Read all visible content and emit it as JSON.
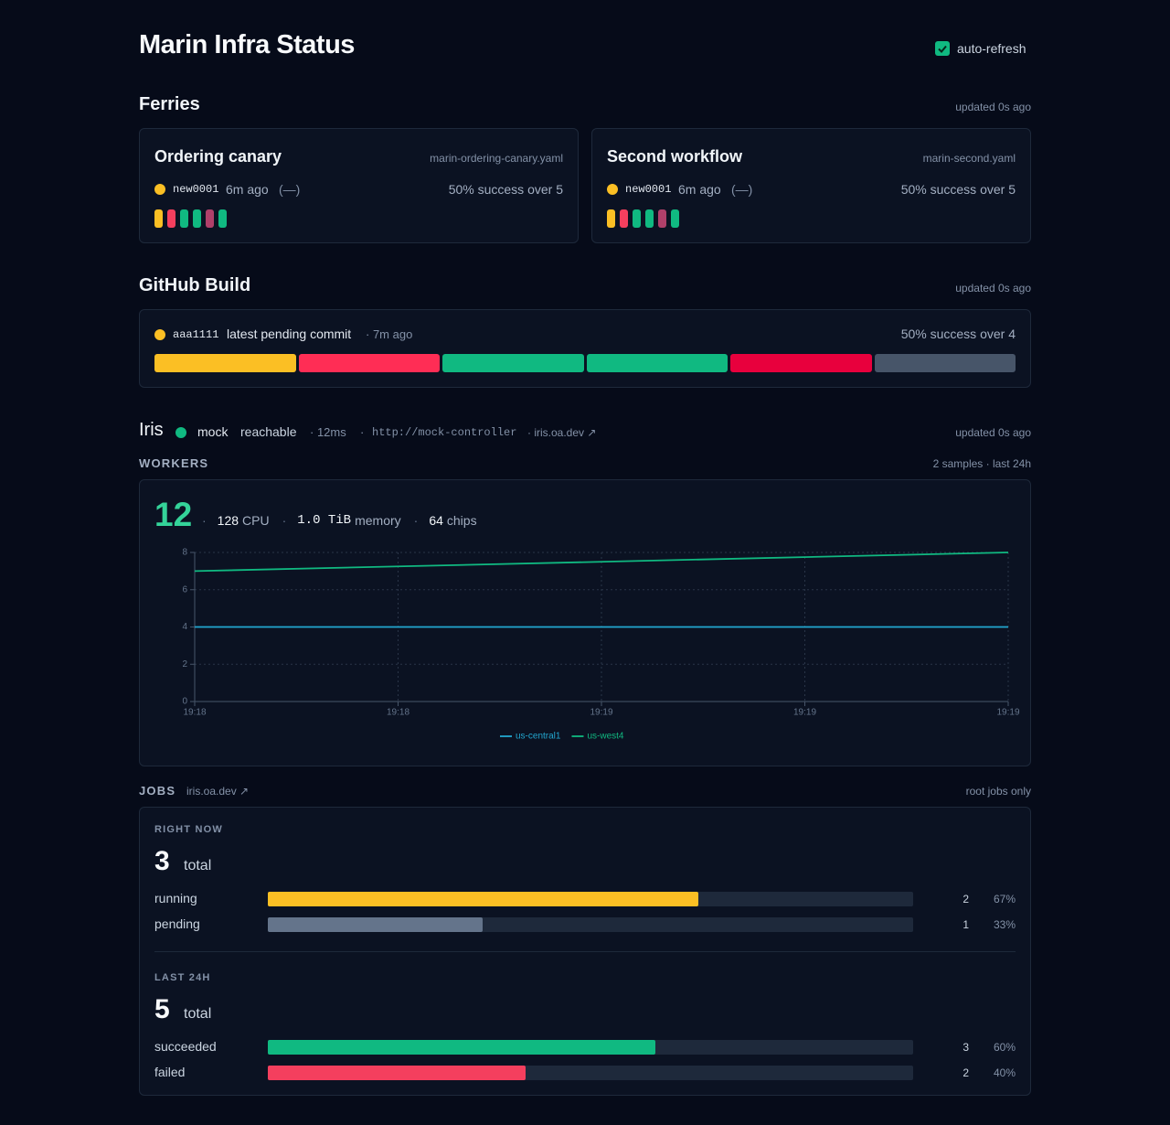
{
  "header": {
    "title": "Marin Infra Status",
    "auto_refresh": "auto-refresh"
  },
  "ferries": {
    "title": "Ferries",
    "updated": "updated 0s ago",
    "cards": [
      {
        "name": "Ordering canary",
        "file": "marin-ordering-canary.yaml",
        "status_color": "#fbbf24",
        "commit": "new0001",
        "age": "6m ago",
        "delta": "(—)",
        "success": "50% success over 5",
        "runs": [
          "#fbbf24",
          "#f43f5e",
          "#10b981",
          "#10b981",
          "#b0406a",
          "#10b981"
        ]
      },
      {
        "name": "Second workflow",
        "file": "marin-second.yaml",
        "status_color": "#fbbf24",
        "commit": "new0001",
        "age": "6m ago",
        "delta": "(—)",
        "success": "50% success over 5",
        "runs": [
          "#fbbf24",
          "#f43f5e",
          "#10b981",
          "#10b981",
          "#b0406a",
          "#10b981"
        ]
      }
    ]
  },
  "github": {
    "title": "GitHub Build",
    "updated": "updated 0s ago",
    "status_color": "#fbbf24",
    "commit": "aaa1111",
    "label": "latest pending commit",
    "age": "· 7m ago",
    "success": "50% success over 4",
    "runs": [
      "#fbbf24",
      "#ff2d55",
      "#10b981",
      "#10b981",
      "#e8003d",
      "#475569"
    ]
  },
  "iris": {
    "title": "Iris",
    "status_color": "#10b981",
    "name": "mock",
    "state": "reachable",
    "latency": "· 12ms",
    "sep": "·",
    "url": "http://mock-controller",
    "link": "· iris.oa.dev ↗",
    "updated": "updated 0s ago"
  },
  "workers": {
    "title": "WORKERS",
    "samples": "2 samples · last 24h",
    "count": 12,
    "sep": "·",
    "stats": [
      {
        "value": "128",
        "unit": "CPU"
      },
      {
        "value": "1.0 TiB",
        "unit": "memory"
      },
      {
        "value": "64",
        "unit": "chips"
      }
    ]
  },
  "chart_data": {
    "type": "line",
    "xlim": [
      0,
      4
    ],
    "xticks": [
      {
        "value": 0,
        "label": "19:18"
      },
      {
        "value": 1,
        "label": "19:18"
      },
      {
        "value": 2,
        "label": "19:19"
      },
      {
        "value": 3,
        "label": "19:19"
      },
      {
        "value": 4,
        "label": "19:19"
      }
    ],
    "x": [
      0,
      4
    ],
    "ylim": [
      0,
      8
    ],
    "yticks": [
      0,
      2,
      4,
      6,
      8
    ],
    "grid": true,
    "series": [
      {
        "name": "us-central1",
        "color": "#22a7d0",
        "values": [
          4,
          4
        ]
      },
      {
        "name": "us-west4",
        "color": "#10b981",
        "values": [
          7,
          8
        ]
      }
    ]
  },
  "jobs": {
    "title": "JOBS",
    "link": "iris.oa.dev ↗",
    "scope": "root jobs only",
    "groups": [
      {
        "title": "RIGHT NOW",
        "total": 3,
        "total_label": "total",
        "rows": [
          {
            "label": "running",
            "count": 2,
            "pct": "67%",
            "color": "#fbbf24"
          },
          {
            "label": "pending",
            "count": 1,
            "pct": "33%",
            "color": "#64748b"
          }
        ]
      },
      {
        "title": "LAST 24H",
        "total": 5,
        "total_label": "total",
        "rows": [
          {
            "label": "succeeded",
            "count": 3,
            "pct": "60%",
            "color": "#10b981"
          },
          {
            "label": "failed",
            "count": 2,
            "pct": "40%",
            "color": "#f43f5e"
          }
        ]
      }
    ]
  }
}
